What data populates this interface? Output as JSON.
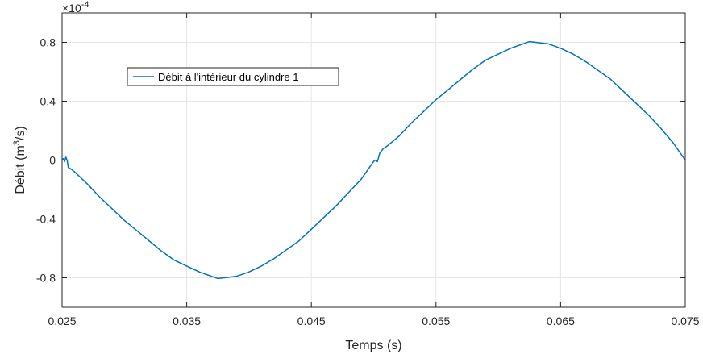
{
  "chart_data": {
    "type": "line",
    "xlabel": "Temps (s)",
    "ylabel_main": "Débit (m",
    "ylabel_sup": "3",
    "ylabel_end": "/s)",
    "multiplier_base": "×10",
    "multiplier_exp": "-4",
    "xlim": [
      0.025,
      0.075
    ],
    "ylim": [
      -1.0,
      1.0
    ],
    "xticks": [
      0.025,
      0.035,
      0.045,
      0.055,
      0.065,
      0.075
    ],
    "xtick_labels": [
      "0.025",
      "0.035",
      "0.045",
      "0.055",
      "0.065",
      "0.075"
    ],
    "yticks": [
      -0.8,
      -0.4,
      0,
      0.4,
      0.8
    ],
    "ytick_labels": [
      "-0.8",
      "-0.4",
      "0",
      "0.4",
      "0.8"
    ],
    "grid": true,
    "legend_position": "top-left",
    "series": [
      {
        "name": "Débit à l'intérieur du cylindre 1",
        "color": "#0072BD",
        "x": [
          0.025,
          0.0251,
          0.0252,
          0.0253,
          0.0254,
          0.0255,
          0.0257,
          0.026,
          0.027,
          0.028,
          0.029,
          0.03,
          0.031,
          0.032,
          0.033,
          0.034,
          0.035,
          0.036,
          0.037,
          0.0375,
          0.038,
          0.039,
          0.04,
          0.041,
          0.042,
          0.043,
          0.044,
          0.045,
          0.046,
          0.047,
          0.048,
          0.049,
          0.0495,
          0.0499,
          0.0501,
          0.0503,
          0.0505,
          0.0506,
          0.0508,
          0.051,
          0.052,
          0.053,
          0.054,
          0.055,
          0.056,
          0.057,
          0.058,
          0.059,
          0.06,
          0.061,
          0.062,
          0.0625,
          0.063,
          0.064,
          0.065,
          0.066,
          0.067,
          0.068,
          0.069,
          0.07,
          0.071,
          0.072,
          0.073,
          0.074,
          0.075
        ],
        "y": [
          0.0,
          0.01,
          -0.01,
          0.02,
          0.0,
          -0.05,
          -0.06,
          -0.08,
          -0.16,
          -0.25,
          -0.33,
          -0.41,
          -0.48,
          -0.55,
          -0.62,
          -0.68,
          -0.72,
          -0.76,
          -0.79,
          -0.805,
          -0.8,
          -0.79,
          -0.76,
          -0.72,
          -0.67,
          -0.61,
          -0.55,
          -0.47,
          -0.39,
          -0.31,
          -0.22,
          -0.13,
          -0.07,
          -0.02,
          0.0,
          -0.01,
          0.05,
          0.06,
          0.08,
          0.09,
          0.16,
          0.25,
          0.33,
          0.41,
          0.48,
          0.55,
          0.62,
          0.68,
          0.72,
          0.76,
          0.79,
          0.805,
          0.8,
          0.79,
          0.76,
          0.72,
          0.67,
          0.61,
          0.55,
          0.47,
          0.39,
          0.31,
          0.22,
          0.12,
          0.0
        ]
      }
    ]
  }
}
